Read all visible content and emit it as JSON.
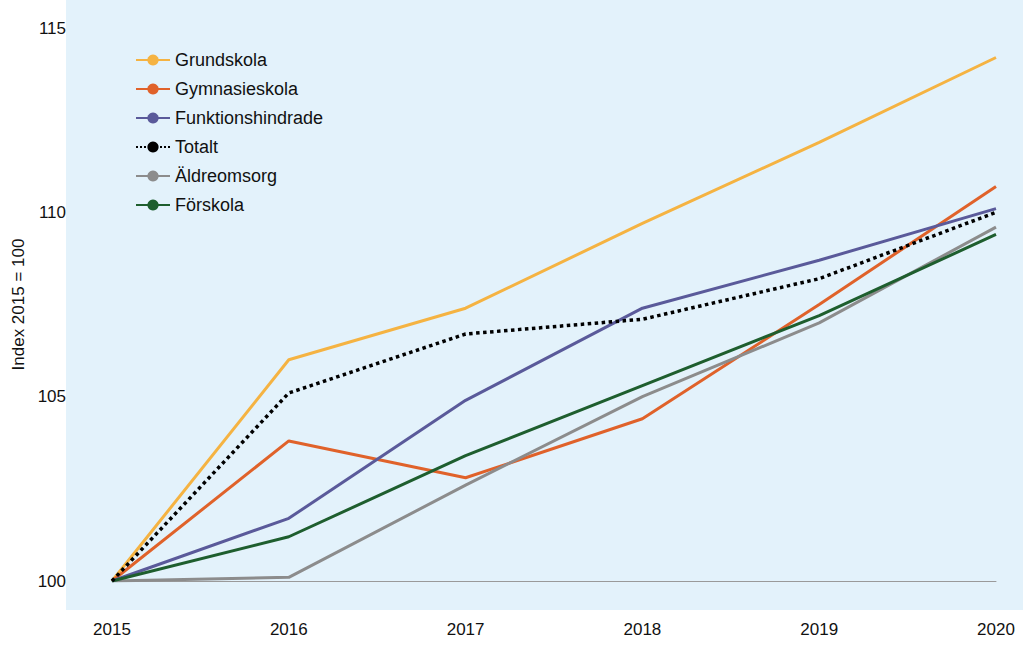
{
  "chart_data": {
    "type": "line",
    "y_label": "Index 2015 = 100",
    "categories": [
      "2015",
      "2016",
      "2017",
      "2018",
      "2019",
      "2020"
    ],
    "ylim": [
      100,
      115
    ],
    "yticks": [
      100,
      105,
      110,
      115
    ],
    "grid": false,
    "legend": "upper left",
    "series": [
      {
        "name": "Grundskola",
        "color": "#f5b342",
        "line_style": "solid",
        "values": [
          100,
          106.0,
          107.4,
          109.7,
          111.9,
          114.2
        ]
      },
      {
        "name": "Gymnasieskola",
        "color": "#e0622a",
        "line_style": "solid",
        "values": [
          100,
          103.8,
          102.8,
          104.4,
          107.5,
          110.7
        ]
      },
      {
        "name": "Funktionshindrade",
        "color": "#5a5a9a",
        "line_style": "solid",
        "values": [
          100,
          101.7,
          104.9,
          107.4,
          108.7,
          110.1
        ]
      },
      {
        "name": "Totalt",
        "color": "#000000",
        "line_style": "dotted",
        "values": [
          100,
          105.1,
          106.7,
          107.1,
          108.2,
          110.0
        ]
      },
      {
        "name": "Äldreomsorg",
        "color": "#8c8c8c",
        "line_style": "solid",
        "values": [
          100,
          100.1,
          102.6,
          105.0,
          107.0,
          109.6
        ]
      },
      {
        "name": "Förskola",
        "color": "#1e5e2e",
        "line_style": "solid",
        "values": [
          100,
          101.2,
          103.4,
          105.3,
          107.2,
          109.4
        ]
      }
    ]
  }
}
